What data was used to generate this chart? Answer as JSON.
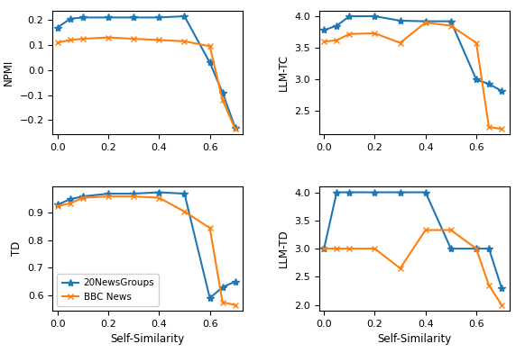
{
  "x": [
    0.0,
    0.05,
    0.1,
    0.2,
    0.3,
    0.4,
    0.5,
    0.6,
    0.65,
    0.7
  ],
  "npmi_20ng": [
    0.17,
    0.205,
    0.21,
    0.21,
    0.21,
    0.21,
    0.215,
    0.03,
    -0.09,
    -0.23
  ],
  "npmi_bbc": [
    0.11,
    0.12,
    0.125,
    0.13,
    0.125,
    0.12,
    0.115,
    0.095,
    -0.12,
    -0.235
  ],
  "llm_tc_20ng": [
    3.78,
    3.85,
    4.0,
    4.0,
    3.93,
    3.92,
    3.92,
    3.0,
    2.93,
    2.82
  ],
  "llm_tc_bbc": [
    3.6,
    3.62,
    3.72,
    3.73,
    3.58,
    3.9,
    3.85,
    3.58,
    2.25,
    2.22
  ],
  "td_20ng": [
    0.93,
    0.95,
    0.96,
    0.97,
    0.97,
    0.975,
    0.97,
    0.59,
    0.63,
    0.65
  ],
  "td_bbc": [
    0.925,
    0.935,
    0.955,
    0.96,
    0.96,
    0.955,
    0.905,
    0.845,
    0.575,
    0.565
  ],
  "llm_td_20ng": [
    3.0,
    4.0,
    4.0,
    4.0,
    4.0,
    4.0,
    3.0,
    3.0,
    3.0,
    2.3
  ],
  "llm_td_bbc": [
    3.0,
    3.0,
    3.0,
    3.0,
    2.65,
    3.33,
    3.33,
    3.0,
    2.35,
    2.0
  ],
  "color_20ng": "#1f77b4",
  "color_bbc": "#ff7f0e",
  "label_20ng": "20NewsGroups",
  "label_bbc": "BBC News",
  "xlabel": "Self-Similarity",
  "xlim": [
    -0.02,
    0.73
  ],
  "xticks": [
    0.0,
    0.2,
    0.4,
    0.6
  ]
}
